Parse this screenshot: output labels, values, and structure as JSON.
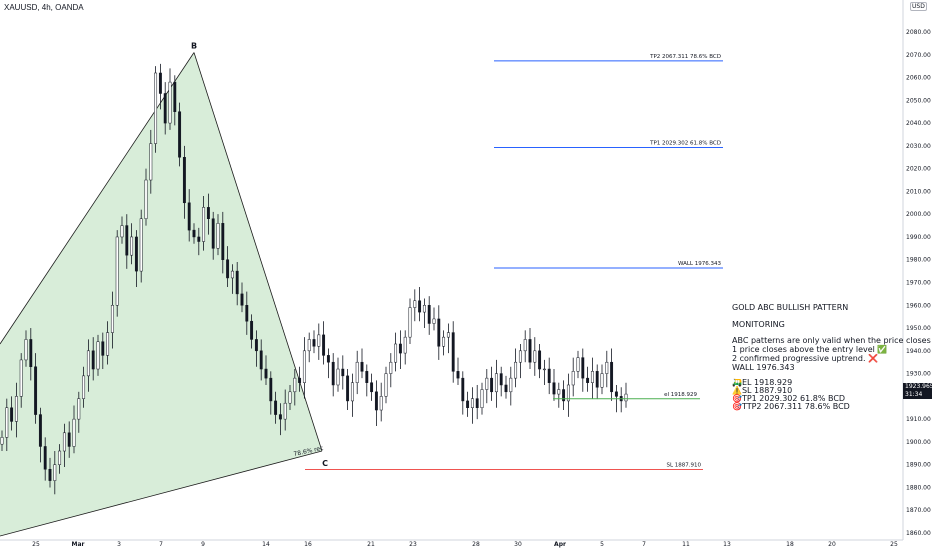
{
  "symbol": "XAUUSD, 4h, OANDA",
  "currency": "USD",
  "current_price": "1923.965",
  "countdown": "31:34",
  "annotation": {
    "title": "GOLD ABC BULLISH PATTERN",
    "status": "MONITORING",
    "line1": "ABC patterns are only valid when the price closes a",
    "line2": "1 price closes above the entry level ✅",
    "line3": "2 confirmed progressive uptrend. ❌",
    "line4": "WALL 1976.343",
    "el": "🛺EL 1918.929",
    "sl": "⚠️SL 1887.910",
    "tp1": "🎯TP1 2029.302 61.8% BCD",
    "tp2": "🎯TTP2 2067.311 78.6% BCD"
  },
  "chart_data": {
    "type": "candlestick",
    "ylim": [
      1857,
      2090
    ],
    "y_ticks": [
      1860,
      1870,
      1880,
      1890,
      1900,
      1910,
      1920,
      1930,
      1940,
      1950,
      1960,
      1970,
      1980,
      1990,
      2000,
      2010,
      2020,
      2030,
      2040,
      2050,
      2060,
      2070,
      2080
    ],
    "x_ticks": [
      "25",
      "Mar",
      "3",
      "7",
      "9",
      "14",
      "16",
      "21",
      "23",
      "28",
      "30",
      "Apr",
      "5",
      "7",
      "11",
      "13",
      "18",
      "20",
      "25"
    ],
    "levels": [
      {
        "label": "TP2 2067.311 78.6% BCD",
        "value": 2067.311,
        "color": "#2962ff"
      },
      {
        "label": "TP1 2029.302 61.8% BCD",
        "value": 2029.302,
        "color": "#2962ff"
      },
      {
        "label": "WALL 1976.343",
        "value": 1976.343,
        "color": "#2962ff"
      },
      {
        "label": "el 1918.929",
        "value": 1918.929,
        "color": "#4caf50"
      },
      {
        "label": "SL 1887.910",
        "value": 1887.91,
        "color": "#ef5350"
      }
    ],
    "pattern_points": [
      {
        "label": "B",
        "value": 2071
      },
      {
        "label": "C",
        "value": 1896
      }
    ],
    "pattern_note": "78.6% rec",
    "closes": [
      1902,
      1915,
      1909,
      1920,
      1936,
      1945,
      1933,
      1912,
      1898,
      1888,
      1883,
      1890,
      1896,
      1904,
      1898,
      1910,
      1919,
      1929,
      1940,
      1932,
      1944,
      1938,
      1948,
      1960,
      1990,
      1995,
      1982,
      1990,
      1975,
      1998,
      2015,
      2031,
      2062,
      2053,
      2040,
      2058,
      2045,
      2025,
      2005,
      1993,
      1990,
      1988,
      2003,
      1998,
      1985,
      1996,
      1980,
      1972,
      1975,
      1965,
      1960,
      1953,
      1945,
      1940,
      1932,
      1928,
      1918,
      1912,
      1910,
      1917,
      1922,
      1928,
      1926,
      1940,
      1945,
      1942,
      1947,
      1938,
      1935,
      1925,
      1932,
      1929,
      1918,
      1926,
      1935,
      1931,
      1926,
      1922,
      1914,
      1920,
      1930,
      1935,
      1943,
      1939,
      1946,
      1959,
      1962,
      1957,
      1960,
      1952,
      1954,
      1942,
      1946,
      1948,
      1931,
      1928,
      1918,
      1915,
      1919,
      1915,
      1923,
      1928,
      1922,
      1930,
      1925,
      1922,
      1928,
      1935,
      1940,
      1945,
      1935,
      1940,
      1932,
      1932,
      1926,
      1921,
      1923,
      1918,
      1925,
      1931,
      1937,
      1928,
      1926,
      1931,
      1924,
      1930,
      1935,
      1922,
      1920,
      1918,
      1921
    ]
  }
}
